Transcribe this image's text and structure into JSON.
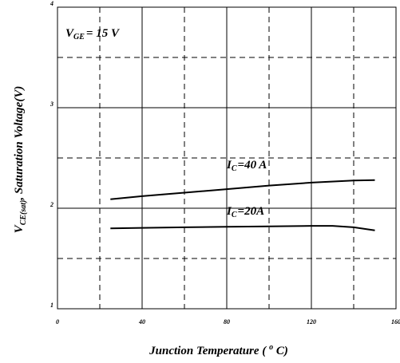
{
  "chart_data": {
    "type": "line",
    "title": "",
    "xlabel": "Junction Temperature ( o C)",
    "xlabel_parts": {
      "main": "Junction Temperature ( ",
      "sup": "o",
      "tail": " C)"
    },
    "ylabel": "VCE(sat), Saturation Voltage(V)",
    "ylabel_parts": {
      "v": "V",
      "sub": "CE(sat)",
      "rest": ", Saturation Voltage(V)"
    },
    "xlim": [
      0,
      160
    ],
    "ylim": [
      1,
      4
    ],
    "x_ticks": [
      0,
      40,
      80,
      120,
      160
    ],
    "y_ticks": [
      1,
      2,
      3,
      4
    ],
    "grid": "solid lines at major ticks, dashed lines at intermediate steps",
    "vertical_dashed_at": [
      20,
      60,
      100,
      140
    ],
    "horizontal_dashed_at": [
      1.5,
      2.5,
      3.5
    ],
    "condition": {
      "v": "V",
      "sub": "GE",
      "text": "= 15 V"
    },
    "series": [
      {
        "name": "IC=40 A",
        "label_parts": {
          "i": "I",
          "sub": "C",
          "text": "=40 A"
        },
        "x": [
          25,
          40,
          60,
          80,
          100,
          120,
          140,
          150
        ],
        "y": [
          2.09,
          2.12,
          2.155,
          2.19,
          2.225,
          2.255,
          2.275,
          2.28
        ]
      },
      {
        "name": "IC=20A",
        "label_parts": {
          "i": "I",
          "sub": "C",
          "text": "=20A"
        },
        "x": [
          25,
          40,
          60,
          80,
          100,
          120,
          130,
          140,
          150
        ],
        "y": [
          1.8,
          1.805,
          1.81,
          1.815,
          1.82,
          1.825,
          1.825,
          1.81,
          1.78
        ]
      }
    ]
  }
}
